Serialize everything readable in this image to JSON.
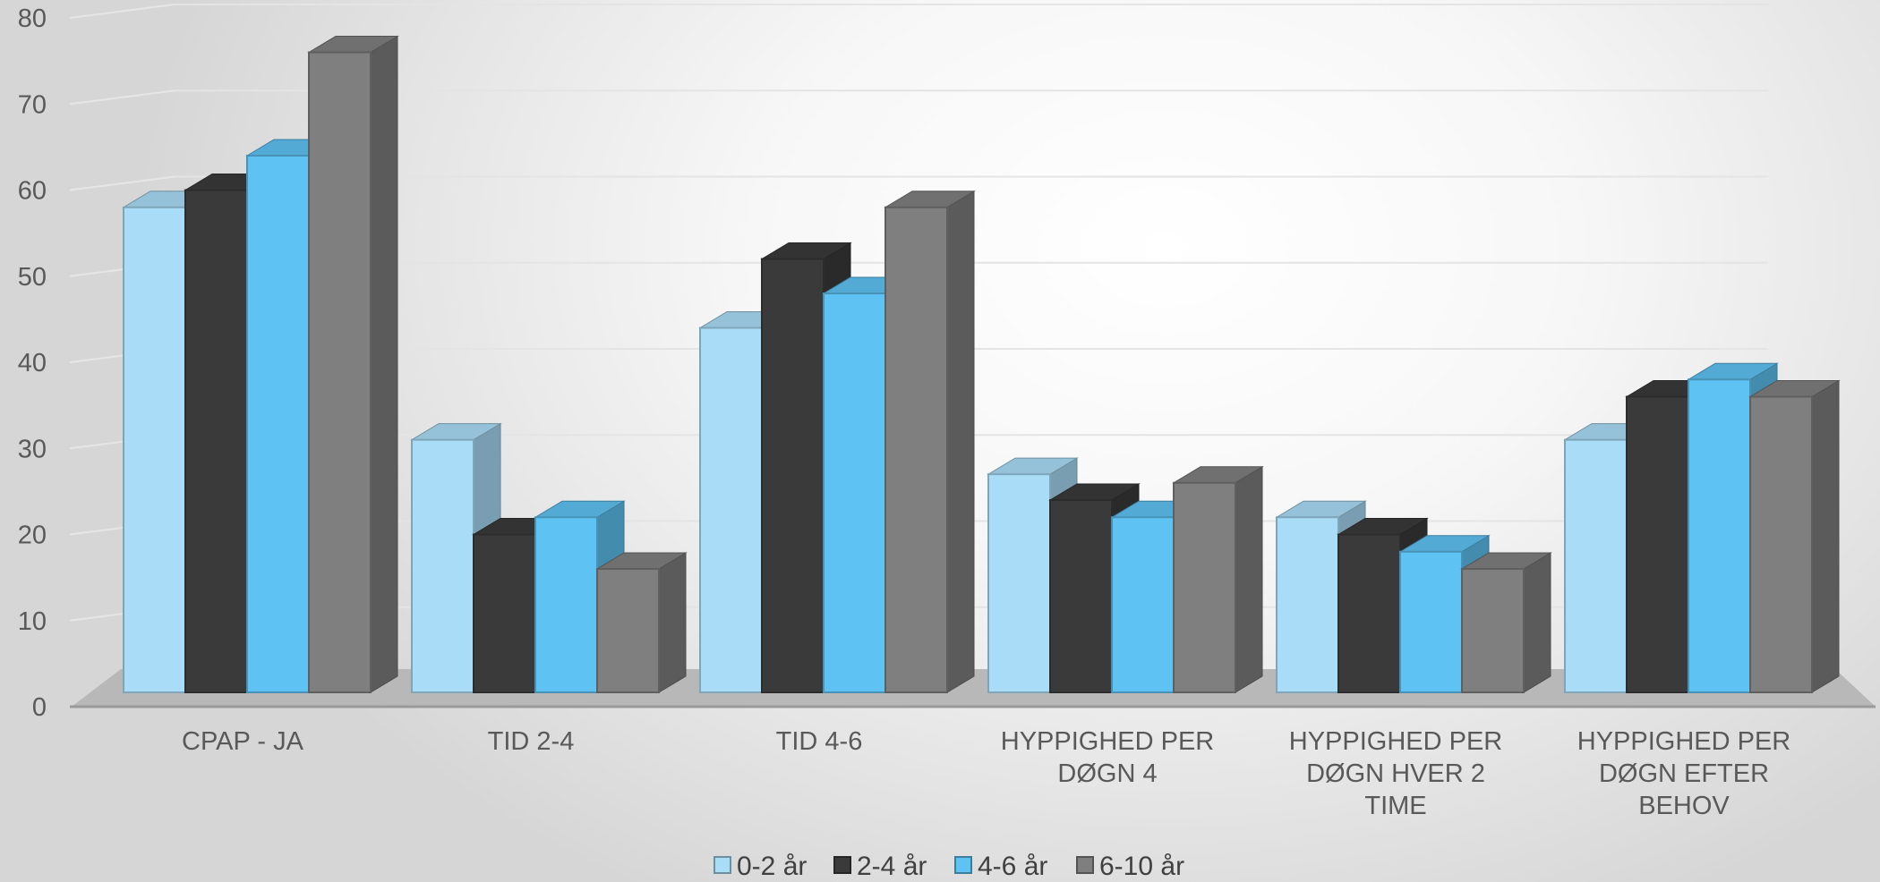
{
  "chart_data": {
    "type": "bar",
    "title": "",
    "xlabel": "",
    "ylabel": "",
    "ylim": [
      0,
      80
    ],
    "y_ticks": [
      "0",
      "10",
      "20",
      "30",
      "40",
      "50",
      "60",
      "70",
      "80"
    ],
    "categories": [
      "CPAP - JA",
      "TID 2-4",
      "TID 4-6",
      "HYPPIGHED PER DØGN 4",
      "HYPPIGHED PER DØGN HVER 2 TIME",
      "HYPPIGHED PER DØGN EFTER BEHOV"
    ],
    "category_lines": [
      [
        "CPAP - JA"
      ],
      [
        "TID 2-4"
      ],
      [
        "TID 4-6"
      ],
      [
        "HYPPIGHED PER",
        "DØGN 4"
      ],
      [
        "HYPPIGHED PER",
        "DØGN HVER 2",
        "TIME"
      ],
      [
        "HYPPIGHED PER",
        "DØGN EFTER",
        "BEHOV"
      ]
    ],
    "series": [
      {
        "name": "0-2 år",
        "color": "#a9dcf6",
        "values": [
          58,
          31,
          44,
          27,
          22,
          31
        ]
      },
      {
        "name": "2-4 år",
        "color": "#3a3a3a",
        "values": [
          60,
          20,
          52,
          24,
          20,
          36
        ]
      },
      {
        "name": "4-6 år",
        "color": "#5ec2f2",
        "values": [
          64,
          22,
          48,
          22,
          18,
          38
        ]
      },
      {
        "name": "6-10 år",
        "color": "#7f7f7f",
        "values": [
          76,
          16,
          58,
          26,
          16,
          36
        ]
      }
    ],
    "grid": true,
    "legend_position": "bottom",
    "style": "3d-clustered-column"
  }
}
